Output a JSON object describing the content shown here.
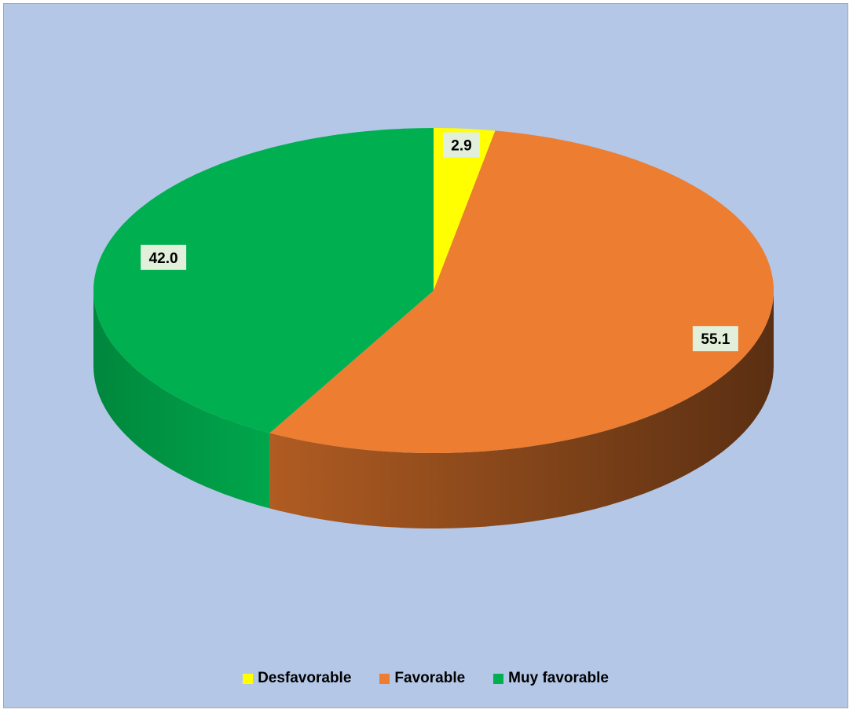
{
  "chart_data": {
    "type": "pie",
    "style": "3d",
    "categories": [
      "Desfavorable",
      "Favorable",
      "Muy favorable"
    ],
    "values": [
      2.9,
      55.1,
      42.0
    ],
    "data_labels": [
      "2.9",
      "55.1",
      "42.0"
    ],
    "colors": [
      "#ffff00",
      "#ed7d31",
      "#00b050"
    ],
    "side_colors": [
      [
        "#b3b300",
        "#8a8a00"
      ],
      [
        "#b05c22",
        "#5a2f12"
      ],
      [
        "#00873d",
        "#00a64b"
      ]
    ],
    "legend_position": "bottom",
    "title": ""
  },
  "background_color": "#b4c7e7"
}
